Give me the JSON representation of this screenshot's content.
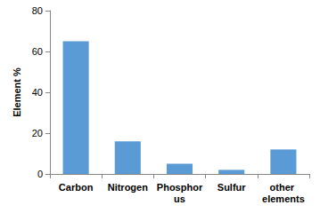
{
  "chart_data": {
    "type": "bar",
    "y_label": "Element %",
    "categories": [
      "Carbon",
      "Nitrogen",
      "Phosphorus",
      "Sulfur",
      "other elements"
    ],
    "values": [
      65,
      16,
      5,
      2,
      12
    ],
    "color": "#5b9bd5",
    "ylim": [
      0,
      80
    ],
    "yticks": [
      0,
      20,
      40,
      60,
      80
    ],
    "grid": false
  }
}
